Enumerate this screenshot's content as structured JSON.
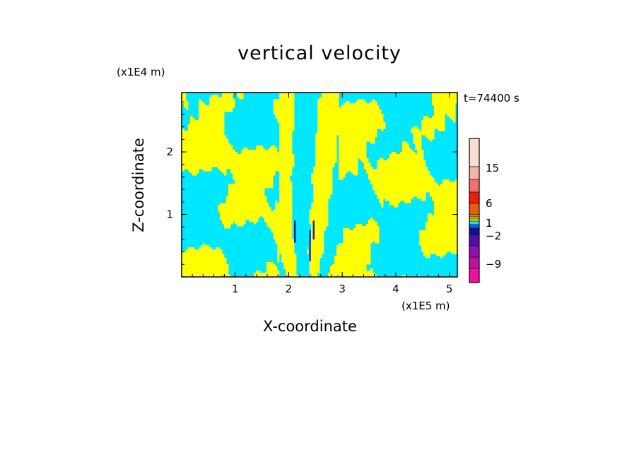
{
  "chart_data": {
    "type": "heatmap",
    "title": "vertical velocity",
    "xlabel": "X-coordinate",
    "ylabel": "Z-coordinate",
    "x_unit": "(x1E5 m)",
    "y_unit": "(x1E4 m)",
    "annotation": "t=74400 s",
    "xlim": [
      0,
      5.15
    ],
    "ylim": [
      0,
      2.95
    ],
    "xticks": [
      "1",
      "2",
      "3",
      "4",
      "5"
    ],
    "yticks": [
      "1",
      "2"
    ],
    "colorbar": {
      "labels": [
        "15",
        "6",
        "1",
        "−2",
        "−9"
      ],
      "colors": [
        "#fadcd2",
        "#f4b4a8",
        "#f07070",
        "#e82010",
        "#e06010",
        "#f0a010",
        "#e8d800",
        "#ffff00",
        "#00e8f8",
        "#1060ff",
        "#1010a0",
        "#5010a0",
        "#9010b0",
        "#c010a0",
        "#f010a0"
      ]
    },
    "field_colors": {
      "positive": "#ffff00",
      "negative": "#00e8ff",
      "strong_negative": "#2020a0"
    }
  }
}
